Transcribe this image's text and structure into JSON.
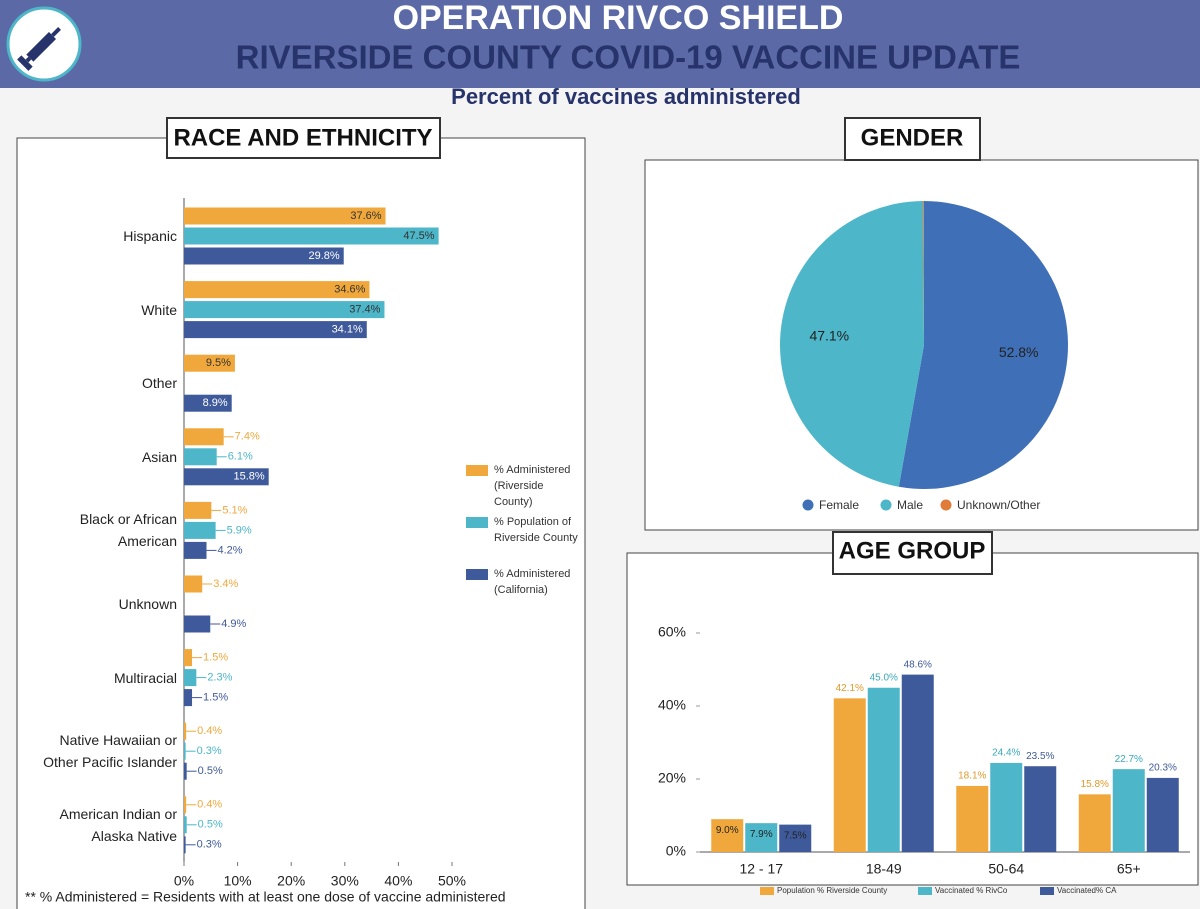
{
  "header": {
    "title": "OPERATION RIVCO SHIELD",
    "subtitle": "RIVERSIDE COUNTY COVID-19 VACCINE UPDATE",
    "caption": "Percent of vaccines administered"
  },
  "footnote": "** % Administered = Residents with at least one dose of vaccine administered",
  "chart_data": [
    {
      "type": "hbar",
      "title": "RACE AND ETHNICITY",
      "categories": [
        "Hispanic",
        "White",
        "Other",
        "Asian",
        "Black or African American",
        "Unknown",
        "Multiracial",
        "Native Hawaiian or Other Pacific Islander",
        "American Indian or Alaska Native"
      ],
      "series": [
        {
          "name": "% Administered (Riverside County)",
          "color": "#f0a83c",
          "values": [
            37.6,
            34.6,
            9.5,
            7.4,
            5.1,
            3.4,
            1.5,
            0.4,
            0.4
          ],
          "value_labels": [
            "37.6%",
            "34.6%",
            "9.5%",
            "7.4%",
            "5.1%",
            "3.4%",
            "1.5%",
            "0.4%",
            "0.4%"
          ]
        },
        {
          "name": "% Population of Riverside County",
          "color": "#4db6c8",
          "values": [
            47.5,
            37.4,
            null,
            6.1,
            5.9,
            null,
            2.3,
            0.3,
            0.5
          ],
          "value_labels": [
            "47.5%",
            "37.4%",
            null,
            "6.1%",
            "5.9%",
            null,
            "2.3%",
            "0.3%",
            "0.5%"
          ]
        },
        {
          "name": "% Administered (California)",
          "color": "#3f5a9a",
          "values": [
            29.8,
            34.1,
            8.9,
            15.8,
            4.2,
            4.9,
            1.5,
            0.5,
            0.3
          ],
          "value_labels": [
            "29.8%",
            "34.1%",
            "8.9%",
            "15.8%",
            "4.2%",
            "4.9%",
            "1.5%",
            "0.5%",
            "0.3%"
          ]
        }
      ],
      "xlim": [
        0,
        50
      ],
      "xticks": [
        {
          "value": 0,
          "label": "0%"
        },
        {
          "value": 10,
          "label": "10%"
        },
        {
          "value": 20,
          "label": "20%"
        },
        {
          "value": 30,
          "label": "30%"
        },
        {
          "value": 40,
          "label": "40%"
        },
        {
          "value": 50,
          "label": "50%"
        }
      ]
    },
    {
      "type": "pie",
      "title": "GENDER",
      "categories": [
        "Female",
        "Male",
        "Unknown/Other"
      ],
      "values": [
        52.8,
        47.1,
        0.1
      ],
      "value_labels": [
        "52.8%",
        "47.1%",
        null
      ],
      "colors": [
        "#3f6fb6",
        "#4db6c8",
        "#e07b39"
      ]
    },
    {
      "type": "bar",
      "title": "AGE GROUP",
      "categories": [
        "12 - 17",
        "18-49",
        "50-64",
        "65+"
      ],
      "series": [
        {
          "name": "Population % Riverside County",
          "color": "#f0a83c",
          "label_color": "#e09a2a",
          "values": [
            9.0,
            42.1,
            18.1,
            15.8
          ],
          "value_labels": [
            "9.0%",
            "42.1%",
            "18.1%",
            "15.8%"
          ]
        },
        {
          "name": "Vaccinated % RivCo",
          "color": "#4db6c8",
          "label_color": "#3aa8bc",
          "values": [
            7.9,
            45.0,
            24.4,
            22.7
          ],
          "value_labels": [
            "7.9%",
            "45.0%",
            "24.4%",
            "22.7%"
          ]
        },
        {
          "name": "Vaccinated% CA",
          "color": "#3f5a9a",
          "label_color": "#3f5a9a",
          "values": [
            7.5,
            48.6,
            23.5,
            20.3
          ],
          "value_labels": [
            "7.5%",
            "48.6%",
            "23.5%",
            "20.3%"
          ]
        }
      ],
      "ylim": [
        0,
        60
      ],
      "yticks": [
        {
          "value": 0,
          "label": "0%"
        },
        {
          "value": 20,
          "label": "20%"
        },
        {
          "value": 40,
          "label": "40%"
        },
        {
          "value": 60,
          "label": "60%"
        }
      ]
    }
  ]
}
